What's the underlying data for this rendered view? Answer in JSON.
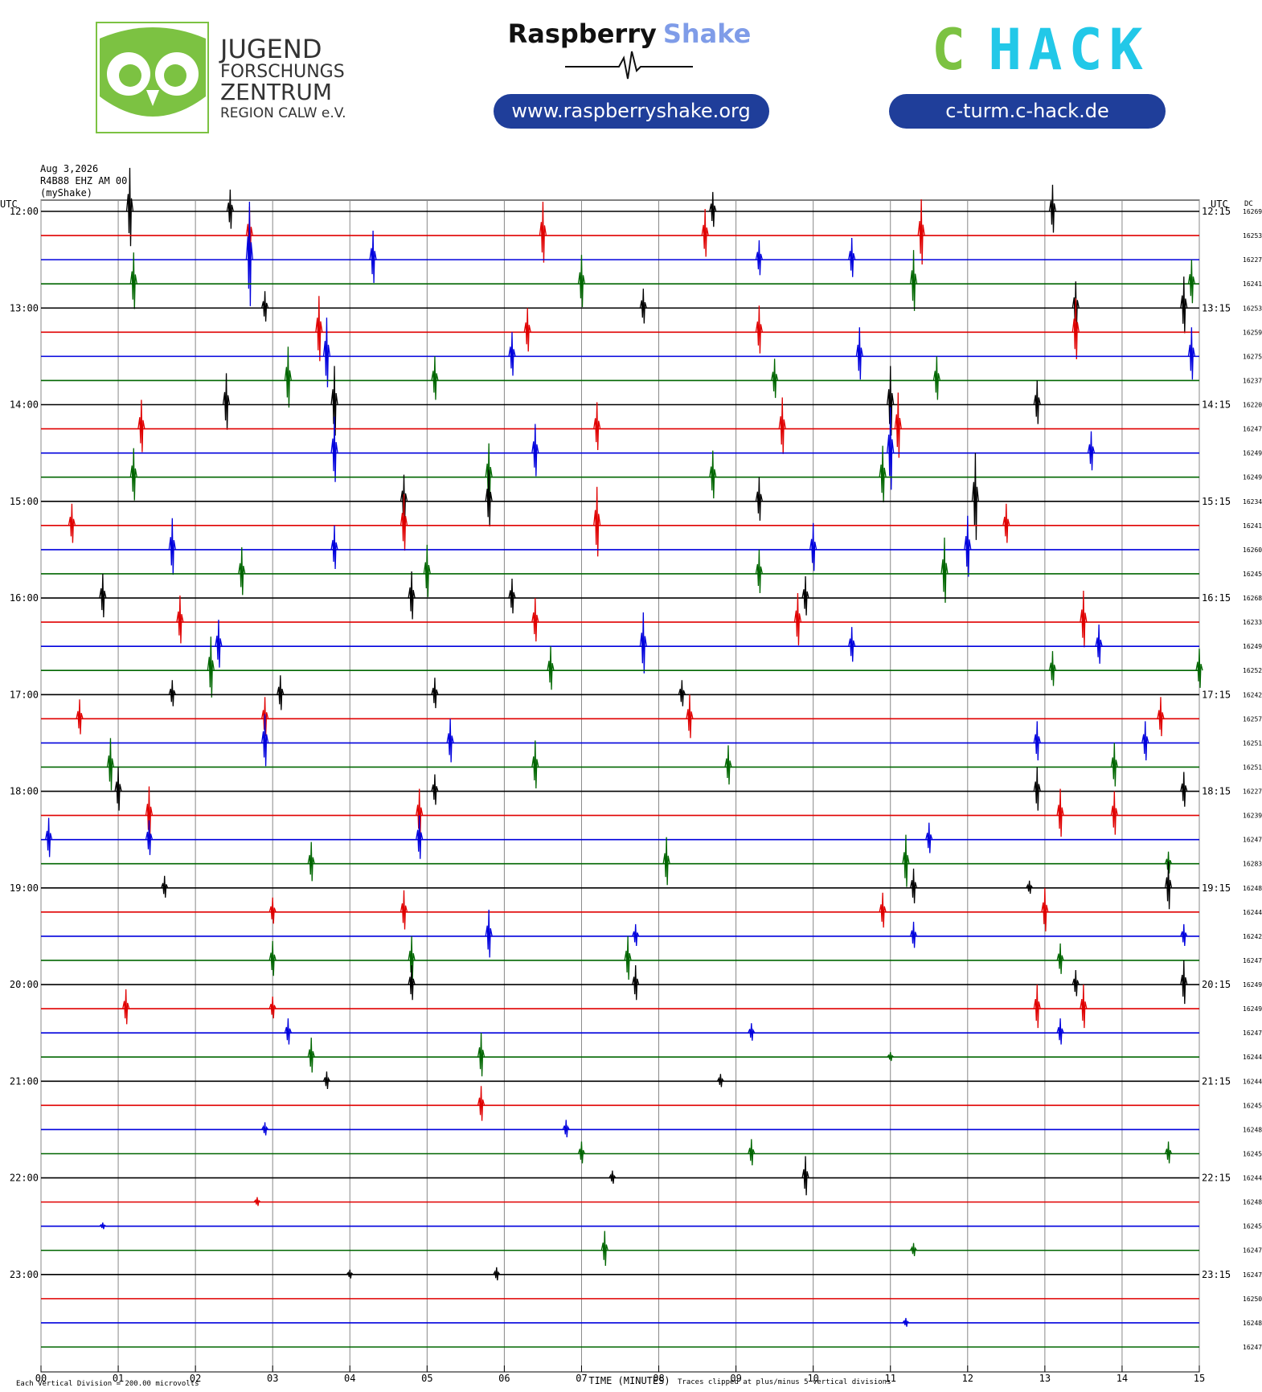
{
  "header": {
    "org_lines": [
      "JUGEND",
      "FORSCHUNGS",
      "ZENTRUM",
      "REGION CALW e.V."
    ],
    "brand_a": "Raspberry",
    "brand_b": "Shake",
    "url_a": "www.raspberryshake.org",
    "logo_c": "C",
    "logo_hack": "HACK",
    "url_b": "c-turm.c-hack.de"
  },
  "chart_data": {
    "type": "helicorder",
    "info": [
      "Aug 3,2026",
      "R4B88 EHZ AM 00",
      "(myShake)"
    ],
    "left_unit": "UTC",
    "right_unit": "UTC",
    "dc_label": "DC",
    "xlabel": "TIME (MINUTES)",
    "note_left": "Each Vertical Division =  200.00 microvolts",
    "note_right": "Traces clipped at plus/minus 5 vertical divisions",
    "xlim": [
      0,
      15
    ],
    "xticks": [
      {
        "value": 0,
        "label": "00"
      },
      {
        "value": 1,
        "label": "01"
      },
      {
        "value": 2,
        "label": "02"
      },
      {
        "value": 3,
        "label": "03"
      },
      {
        "value": 4,
        "label": "04"
      },
      {
        "value": 5,
        "label": "05"
      },
      {
        "value": 6,
        "label": "06"
      },
      {
        "value": 7,
        "label": "07"
      },
      {
        "value": 8,
        "label": "08"
      },
      {
        "value": 9,
        "label": "09"
      },
      {
        "value": 10,
        "label": "10"
      },
      {
        "value": 11,
        "label": "11"
      },
      {
        "value": 12,
        "label": "12"
      },
      {
        "value": 13,
        "label": "13"
      },
      {
        "value": 14,
        "label": "14"
      },
      {
        "value": 15,
        "label": "15"
      }
    ],
    "colors": [
      "#000000",
      "#e00000",
      "#0000dd",
      "#006600"
    ],
    "hour_labels": [
      "12:00",
      "13:00",
      "14:00",
      "15:00",
      "16:00",
      "17:00",
      "18:00",
      "19:00",
      "20:00",
      "21:00",
      "22:00",
      "23:00"
    ],
    "end_labels": [
      "12:15",
      "13:15",
      "14:15",
      "15:15",
      "16:15",
      "17:15",
      "18:15",
      "19:15",
      "20:15",
      "21:15",
      "22:15",
      "23:15"
    ],
    "dc": [
      16269,
      16253,
      16227,
      16241,
      16253,
      16259,
      16275,
      16237,
      16220,
      16247,
      16249,
      16249,
      16234,
      16241,
      16260,
      16245,
      16268,
      16233,
      16249,
      16252,
      16242,
      16257,
      16251,
      16251,
      16227,
      16239,
      16247,
      16283,
      16248,
      16244,
      16242,
      16247,
      16249,
      16249,
      16247,
      16244,
      16244,
      16245,
      16248,
      16245,
      16244,
      16248,
      16245,
      16247,
      16247,
      16250,
      16248,
      16247
    ],
    "spikes": [
      [
        [
          1.15,
          1.8
        ],
        [
          2.45,
          0.9
        ],
        [
          8.7,
          0.8
        ],
        [
          13.1,
          1.1
        ]
      ],
      [
        [
          2.7,
          1.2
        ],
        [
          6.5,
          1.4
        ],
        [
          8.6,
          1.1
        ],
        [
          11.4,
          1.5
        ]
      ],
      [
        [
          2.7,
          2.4
        ],
        [
          4.3,
          1.2
        ],
        [
          9.3,
          0.8
        ],
        [
          10.5,
          0.9
        ]
      ],
      [
        [
          1.2,
          1.3
        ],
        [
          7.0,
          1.2
        ],
        [
          11.3,
          1.4
        ],
        [
          14.9,
          1.0
        ]
      ],
      [
        [
          2.9,
          0.7
        ],
        [
          7.8,
          0.8
        ],
        [
          13.4,
          1.1
        ],
        [
          14.8,
          1.3
        ]
      ],
      [
        [
          3.6,
          1.5
        ],
        [
          6.3,
          1.0
        ],
        [
          9.3,
          1.1
        ],
        [
          13.4,
          1.4
        ]
      ],
      [
        [
          3.7,
          1.6
        ],
        [
          6.1,
          1.0
        ],
        [
          10.6,
          1.2
        ],
        [
          14.9,
          1.2
        ]
      ],
      [
        [
          3.2,
          1.4
        ],
        [
          5.1,
          1.0
        ],
        [
          9.5,
          0.9
        ],
        [
          11.6,
          1.0
        ]
      ],
      [
        [
          2.4,
          1.3
        ],
        [
          3.8,
          1.6
        ],
        [
          11.0,
          1.6
        ],
        [
          12.9,
          1.0
        ]
      ],
      [
        [
          1.3,
          1.2
        ],
        [
          7.2,
          1.1
        ],
        [
          9.6,
          1.3
        ],
        [
          11.1,
          1.5
        ]
      ],
      [
        [
          3.8,
          1.5
        ],
        [
          6.4,
          1.2
        ],
        [
          11.0,
          1.9
        ],
        [
          13.6,
          0.9
        ]
      ],
      [
        [
          1.2,
          1.2
        ],
        [
          5.8,
          1.4
        ],
        [
          8.7,
          1.1
        ],
        [
          10.9,
          1.3
        ]
      ],
      [
        [
          4.7,
          1.1
        ],
        [
          5.8,
          1.3
        ],
        [
          9.3,
          1.0
        ],
        [
          12.1,
          2.0
        ]
      ],
      [
        [
          0.4,
          0.9
        ],
        [
          4.7,
          1.3
        ],
        [
          7.2,
          1.6
        ],
        [
          12.5,
          0.9
        ]
      ],
      [
        [
          1.7,
          1.3
        ],
        [
          3.8,
          1.0
        ],
        [
          10.0,
          1.1
        ],
        [
          12.0,
          1.4
        ]
      ],
      [
        [
          2.6,
          1.1
        ],
        [
          5.0,
          1.2
        ],
        [
          9.3,
          1.0
        ],
        [
          11.7,
          1.5
        ]
      ],
      [
        [
          0.8,
          1.0
        ],
        [
          4.8,
          1.1
        ],
        [
          6.1,
          0.8
        ],
        [
          9.9,
          0.9
        ]
      ],
      [
        [
          1.8,
          1.1
        ],
        [
          6.4,
          1.0
        ],
        [
          9.8,
          1.2
        ],
        [
          13.5,
          1.3
        ]
      ],
      [
        [
          2.3,
          1.1
        ],
        [
          7.8,
          1.4
        ],
        [
          10.5,
          0.8
        ],
        [
          13.7,
          0.9
        ]
      ],
      [
        [
          2.2,
          1.4
        ],
        [
          6.6,
          1.0
        ],
        [
          13.1,
          0.8
        ],
        [
          15.0,
          0.9
        ]
      ],
      [
        [
          1.7,
          0.6
        ],
        [
          3.1,
          0.8
        ],
        [
          5.1,
          0.7
        ],
        [
          8.3,
          0.6
        ]
      ],
      [
        [
          0.5,
          0.8
        ],
        [
          2.9,
          0.9
        ],
        [
          8.4,
          1.0
        ],
        [
          14.5,
          0.9
        ]
      ],
      [
        [
          2.9,
          1.2
        ],
        [
          5.3,
          1.0
        ],
        [
          12.9,
          0.9
        ],
        [
          14.3,
          0.9
        ]
      ],
      [
        [
          0.9,
          1.2
        ],
        [
          6.4,
          1.1
        ],
        [
          8.9,
          0.9
        ],
        [
          13.9,
          1.0
        ]
      ],
      [
        [
          1.0,
          1.0
        ],
        [
          5.1,
          0.7
        ],
        [
          12.9,
          1.0
        ],
        [
          14.8,
          0.8
        ]
      ],
      [
        [
          1.4,
          1.2
        ],
        [
          4.9,
          1.1
        ],
        [
          13.2,
          1.1
        ],
        [
          13.9,
          1.0
        ]
      ],
      [
        [
          0.1,
          0.9
        ],
        [
          1.4,
          0.8
        ],
        [
          4.9,
          1.0
        ],
        [
          11.5,
          0.7
        ]
      ],
      [
        [
          3.5,
          0.9
        ],
        [
          8.1,
          1.1
        ],
        [
          11.2,
          1.2
        ],
        [
          14.6,
          0.5
        ]
      ],
      [
        [
          1.6,
          0.5
        ],
        [
          11.3,
          0.8
        ],
        [
          12.8,
          0.3
        ],
        [
          14.6,
          1.1
        ]
      ],
      [
        [
          3.0,
          0.6
        ],
        [
          4.7,
          0.9
        ],
        [
          10.9,
          0.8
        ],
        [
          13.0,
          1.0
        ]
      ],
      [
        [
          5.8,
          1.1
        ],
        [
          7.7,
          0.5
        ],
        [
          11.3,
          0.6
        ],
        [
          14.8,
          0.5
        ]
      ],
      [
        [
          3.0,
          0.8
        ],
        [
          4.8,
          1.0
        ],
        [
          7.6,
          1.0
        ],
        [
          13.2,
          0.7
        ]
      ],
      [
        [
          4.8,
          0.8
        ],
        [
          7.7,
          0.8
        ],
        [
          13.4,
          0.6
        ],
        [
          14.8,
          1.0
        ]
      ],
      [
        [
          1.1,
          0.8
        ],
        [
          3.0,
          0.5
        ],
        [
          12.9,
          1.0
        ],
        [
          13.5,
          1.0
        ]
      ],
      [
        [
          3.2,
          0.6
        ],
        [
          9.2,
          0.4
        ],
        [
          13.2,
          0.6
        ]
      ],
      [
        [
          3.5,
          0.8
        ],
        [
          5.7,
          1.0
        ],
        [
          11.0,
          0.2
        ]
      ],
      [
        [
          3.7,
          0.4
        ],
        [
          8.8,
          0.3
        ]
      ],
      [
        [
          5.7,
          0.8
        ]
      ],
      [
        [
          2.9,
          0.3
        ],
        [
          6.8,
          0.4
        ]
      ],
      [
        [
          7.0,
          0.5
        ],
        [
          9.2,
          0.6
        ],
        [
          14.6,
          0.5
        ]
      ],
      [
        [
          7.4,
          0.3
        ],
        [
          9.9,
          0.9
        ]
      ],
      [
        [
          2.8,
          0.2
        ]
      ],
      [
        [
          0.8,
          0.15
        ]
      ],
      [
        [
          7.3,
          0.8
        ],
        [
          11.3,
          0.3
        ]
      ],
      [
        [
          4.0,
          0.2
        ],
        [
          5.9,
          0.3
        ]
      ],
      [],
      [
        [
          11.2,
          0.2
        ]
      ],
      []
    ]
  }
}
